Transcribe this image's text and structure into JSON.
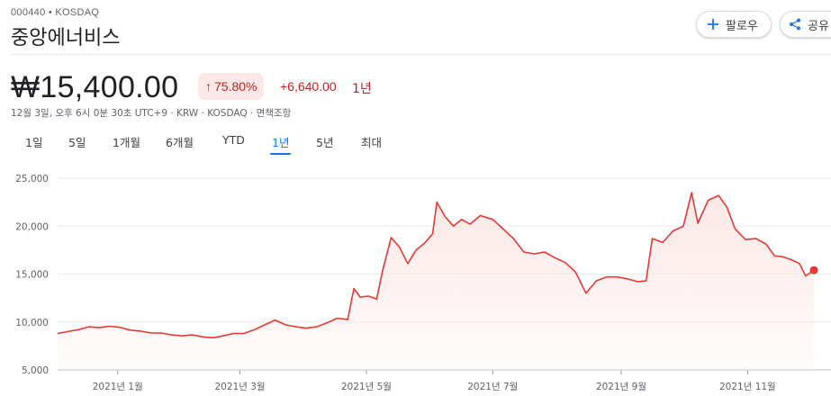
{
  "header": {
    "ticker": "000440 • KOSDAQ",
    "name": "중앙에너비스",
    "follow_label": "팔로우",
    "share_label": "공유"
  },
  "quote": {
    "price": "₩15,400.00",
    "change_pct": "75.80%",
    "change_abs": "+6,640.00",
    "period": "1년",
    "meta": "12월 3일, 오후 6시 0분 30초 UTC+9 · KRW · KOSDAQ · 면책조항"
  },
  "tabs": [
    {
      "label": "1일",
      "active": false
    },
    {
      "label": "5일",
      "active": false
    },
    {
      "label": "1개월",
      "active": false
    },
    {
      "label": "6개월",
      "active": false
    },
    {
      "label": "YTD",
      "active": false
    },
    {
      "label": "1년",
      "active": true
    },
    {
      "label": "5년",
      "active": false
    },
    {
      "label": "최대",
      "active": false
    }
  ],
  "colors": {
    "line": "#e53935",
    "fill": "#fce8e6",
    "positive": "#c5221f",
    "tab_active": "#1a73e8",
    "grid": "#e8eaed"
  },
  "chart_data": {
    "type": "area",
    "title": "",
    "xlabel": "",
    "ylabel": "",
    "ylim": [
      5000,
      25000
    ],
    "y_ticks": [
      25000,
      20000,
      15000,
      10000,
      5000
    ],
    "y_tick_labels": [
      "25,000",
      "20,000",
      "15,000",
      "10,000",
      "5,000"
    ],
    "x_ticks": [
      "2021-01-01",
      "2021-03-01",
      "2021-05-01",
      "2021-07-01",
      "2021-09-01",
      "2021-11-01"
    ],
    "x_tick_labels": [
      "2021년 1월",
      "2021년 3월",
      "2021년 5월",
      "2021년 7월",
      "2021년 9월",
      "2021년 11월"
    ],
    "x_range": [
      "2020-12-03",
      "2021-12-03"
    ],
    "grid": true,
    "series": [
      {
        "points": [
          [
            "2020-12-03",
            8800
          ],
          [
            "2020-12-08",
            9000
          ],
          [
            "2020-12-13",
            9200
          ],
          [
            "2020-12-18",
            9500
          ],
          [
            "2020-12-23",
            9400
          ],
          [
            "2020-12-28",
            9550
          ],
          [
            "2021-01-02",
            9450
          ],
          [
            "2021-01-07",
            9150
          ],
          [
            "2021-01-12",
            9050
          ],
          [
            "2021-01-17",
            8850
          ],
          [
            "2021-01-22",
            8850
          ],
          [
            "2021-01-27",
            8650
          ],
          [
            "2021-02-01",
            8550
          ],
          [
            "2021-02-06",
            8650
          ],
          [
            "2021-02-11",
            8450
          ],
          [
            "2021-02-16",
            8350
          ],
          [
            "2021-02-21",
            8550
          ],
          [
            "2021-02-26",
            8800
          ],
          [
            "2021-03-03",
            8800
          ],
          [
            "2021-03-08",
            9200
          ],
          [
            "2021-03-13",
            9700
          ],
          [
            "2021-03-18",
            10200
          ],
          [
            "2021-03-23",
            9700
          ],
          [
            "2021-03-28",
            9500
          ],
          [
            "2021-04-02",
            9350
          ],
          [
            "2021-04-07",
            9500
          ],
          [
            "2021-04-12",
            9900
          ],
          [
            "2021-04-17",
            10400
          ],
          [
            "2021-04-22",
            10250
          ],
          [
            "2021-04-25",
            13500
          ],
          [
            "2021-04-28",
            12600
          ],
          [
            "2021-05-02",
            12700
          ],
          [
            "2021-05-06",
            12400
          ],
          [
            "2021-05-09",
            15500
          ],
          [
            "2021-05-13",
            18800
          ],
          [
            "2021-05-17",
            17800
          ],
          [
            "2021-05-21",
            16100
          ],
          [
            "2021-05-25",
            17500
          ],
          [
            "2021-05-29",
            18200
          ],
          [
            "2021-06-02",
            19200
          ],
          [
            "2021-06-04",
            22500
          ],
          [
            "2021-06-08",
            21000
          ],
          [
            "2021-06-12",
            20000
          ],
          [
            "2021-06-16",
            20700
          ],
          [
            "2021-06-20",
            20200
          ],
          [
            "2021-06-25",
            21100
          ],
          [
            "2021-07-01",
            20700
          ],
          [
            "2021-07-06",
            19700
          ],
          [
            "2021-07-11",
            18700
          ],
          [
            "2021-07-16",
            17300
          ],
          [
            "2021-07-21",
            17100
          ],
          [
            "2021-07-26",
            17300
          ],
          [
            "2021-07-31",
            16700
          ],
          [
            "2021-08-05",
            16200
          ],
          [
            "2021-08-10",
            15200
          ],
          [
            "2021-08-15",
            13000
          ],
          [
            "2021-08-20",
            14300
          ],
          [
            "2021-08-25",
            14700
          ],
          [
            "2021-08-30",
            14700
          ],
          [
            "2021-09-04",
            14500
          ],
          [
            "2021-09-09",
            14200
          ],
          [
            "2021-09-13",
            14300
          ],
          [
            "2021-09-16",
            18700
          ],
          [
            "2021-09-21",
            18300
          ],
          [
            "2021-09-26",
            19500
          ],
          [
            "2021-10-01",
            20000
          ],
          [
            "2021-10-05",
            23500
          ],
          [
            "2021-10-08",
            20300
          ],
          [
            "2021-10-13",
            22700
          ],
          [
            "2021-10-18",
            23200
          ],
          [
            "2021-10-22",
            22000
          ],
          [
            "2021-10-26",
            19700
          ],
          [
            "2021-10-31",
            18600
          ],
          [
            "2021-11-05",
            18700
          ],
          [
            "2021-11-10",
            18100
          ],
          [
            "2021-11-14",
            16900
          ],
          [
            "2021-11-18",
            16800
          ],
          [
            "2021-11-22",
            16500
          ],
          [
            "2021-11-26",
            16100
          ],
          [
            "2021-11-29",
            14800
          ],
          [
            "2021-12-03",
            15400
          ]
        ]
      }
    ]
  }
}
